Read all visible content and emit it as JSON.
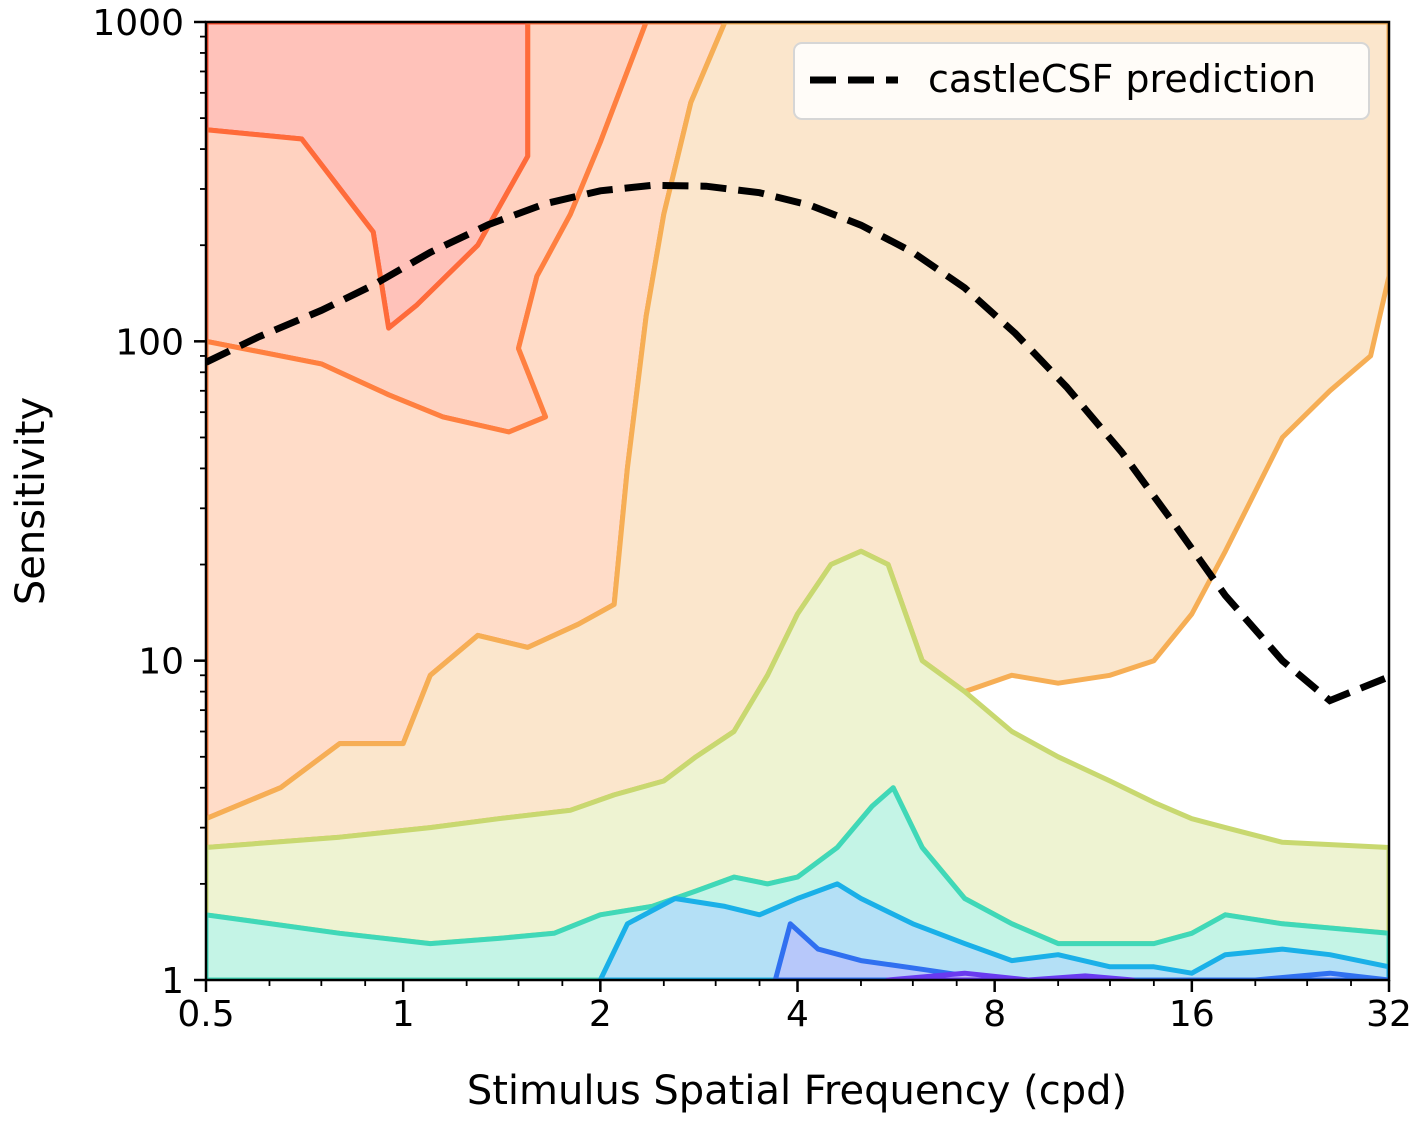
{
  "chart_data": {
    "type": "contour",
    "title": "",
    "xlabel": "Stimulus Spatial Frequency (cpd)",
    "ylabel": "Sensitivity",
    "x_scale": "log2",
    "y_scale": "log10",
    "xlim": [
      0.5,
      32
    ],
    "ylim": [
      1,
      1000
    ],
    "x_ticks": [
      {
        "value": 0.5,
        "label": "0.5"
      },
      {
        "value": 1,
        "label": "1"
      },
      {
        "value": 2,
        "label": "2"
      },
      {
        "value": 4,
        "label": "4"
      },
      {
        "value": 8,
        "label": "8"
      },
      {
        "value": 16,
        "label": "16"
      },
      {
        "value": 32,
        "label": "32"
      }
    ],
    "y_ticks": [
      {
        "value": 1,
        "label": "1"
      },
      {
        "value": 10,
        "label": "10"
      },
      {
        "value": 100,
        "label": "100"
      },
      {
        "value": 1000,
        "label": "1000"
      }
    ],
    "legend": {
      "position": "top-right",
      "entries": [
        {
          "label": "castleCSF prediction",
          "style": "dashed",
          "color": "#000000"
        }
      ]
    },
    "series": [
      {
        "name": "castleCSF prediction",
        "style": "dashed",
        "color": "#000000",
        "points": [
          [
            0.5,
            86
          ],
          [
            0.6,
            103
          ],
          [
            0.75,
            125
          ],
          [
            0.9,
            150
          ],
          [
            1.1,
            190
          ],
          [
            1.35,
            232
          ],
          [
            1.65,
            270
          ],
          [
            2.0,
            296
          ],
          [
            2.4,
            308
          ],
          [
            2.9,
            306
          ],
          [
            3.5,
            292
          ],
          [
            4.2,
            266
          ],
          [
            5.0,
            231
          ],
          [
            6.0,
            190
          ],
          [
            7.2,
            147
          ],
          [
            8.6,
            106
          ],
          [
            10.3,
            72
          ],
          [
            12.5,
            45
          ],
          [
            15,
            27
          ],
          [
            18,
            16
          ],
          [
            22,
            10
          ],
          [
            26,
            7.5
          ],
          [
            32,
            8.9
          ]
        ]
      }
    ],
    "contour_bands": [
      {
        "level": 0,
        "fill": "#ffc2ba",
        "stroke": "#ff4a2a",
        "polygon": [
          [
            0.5,
            1000
          ],
          [
            1.55,
            1000
          ],
          [
            1.55,
            380
          ],
          [
            1.3,
            200
          ],
          [
            1.05,
            130
          ],
          [
            0.95,
            110
          ],
          [
            0.9,
            220
          ],
          [
            0.7,
            430
          ],
          [
            0.5,
            460
          ]
        ]
      },
      {
        "level": 1,
        "fill": "#ffd2c0",
        "stroke": "#ff6b3a",
        "polygon": [
          [
            0.5,
            460
          ],
          [
            0.7,
            430
          ],
          [
            0.9,
            220
          ],
          [
            0.95,
            110
          ],
          [
            1.05,
            130
          ],
          [
            1.3,
            200
          ],
          [
            1.55,
            380
          ],
          [
            1.55,
            1000
          ],
          [
            2.35,
            1000
          ],
          [
            2.0,
            420
          ],
          [
            1.8,
            250
          ],
          [
            1.6,
            160
          ],
          [
            1.5,
            95
          ],
          [
            1.65,
            58
          ],
          [
            1.45,
            52
          ],
          [
            1.15,
            58
          ],
          [
            0.95,
            68
          ],
          [
            0.75,
            85
          ],
          [
            0.5,
            100
          ]
        ]
      },
      {
        "level": 2,
        "fill": "#ffdcc8",
        "stroke": "#ff8040",
        "polygon": [
          [
            0.5,
            100
          ],
          [
            0.75,
            85
          ],
          [
            0.95,
            68
          ],
          [
            1.15,
            58
          ],
          [
            1.45,
            52
          ],
          [
            1.65,
            58
          ],
          [
            1.5,
            95
          ],
          [
            1.6,
            160
          ],
          [
            1.8,
            250
          ],
          [
            2.0,
            420
          ],
          [
            2.35,
            1000
          ],
          [
            3.1,
            1000
          ],
          [
            2.75,
            560
          ],
          [
            2.5,
            250
          ],
          [
            2.35,
            120
          ],
          [
            2.2,
            40
          ],
          [
            2.1,
            15
          ],
          [
            1.85,
            13
          ],
          [
            1.55,
            11
          ],
          [
            1.3,
            12
          ],
          [
            1.1,
            9
          ],
          [
            1.0,
            5.5
          ],
          [
            0.8,
            5.5
          ],
          [
            0.65,
            4
          ],
          [
            0.5,
            3.2
          ]
        ]
      },
      {
        "level": 3,
        "fill": "#fbe6cc",
        "stroke": "#f6ae55",
        "polygon": [
          [
            0.5,
            3.2
          ],
          [
            0.65,
            4
          ],
          [
            0.8,
            5.5
          ],
          [
            1.0,
            5.5
          ],
          [
            1.1,
            9
          ],
          [
            1.3,
            12
          ],
          [
            1.55,
            11
          ],
          [
            1.85,
            13
          ],
          [
            2.1,
            15
          ],
          [
            2.2,
            40
          ],
          [
            2.35,
            120
          ],
          [
            2.5,
            250
          ],
          [
            2.75,
            560
          ],
          [
            3.1,
            1000
          ],
          [
            32,
            1000
          ],
          [
            32,
            160
          ],
          [
            30,
            90
          ],
          [
            26,
            70
          ],
          [
            22,
            50
          ],
          [
            18,
            22
          ],
          [
            16,
            14
          ],
          [
            14,
            10
          ],
          [
            12,
            9
          ],
          [
            10,
            8.5
          ],
          [
            8.5,
            9
          ],
          [
            7.2,
            8
          ],
          [
            6.2,
            10
          ],
          [
            5.5,
            20
          ],
          [
            5.0,
            22
          ],
          [
            4.5,
            20
          ],
          [
            4.0,
            14
          ],
          [
            3.6,
            9
          ],
          [
            3.2,
            6
          ],
          [
            2.8,
            5
          ],
          [
            2.5,
            4.2
          ],
          [
            2.1,
            3.8
          ],
          [
            1.8,
            3.4
          ],
          [
            1.4,
            3.2
          ],
          [
            1.1,
            3
          ],
          [
            0.8,
            2.8
          ],
          [
            0.5,
            2.6
          ]
        ]
      },
      {
        "level": 4,
        "fill": "#eef3d2",
        "stroke": "#c8d870",
        "polygon": [
          [
            0.5,
            2.6
          ],
          [
            0.8,
            2.8
          ],
          [
            1.1,
            3
          ],
          [
            1.4,
            3.2
          ],
          [
            1.8,
            3.4
          ],
          [
            2.1,
            3.8
          ],
          [
            2.5,
            4.2
          ],
          [
            2.8,
            5
          ],
          [
            3.2,
            6
          ],
          [
            3.6,
            9
          ],
          [
            4.0,
            14
          ],
          [
            4.5,
            20
          ],
          [
            5.0,
            22
          ],
          [
            5.5,
            20
          ],
          [
            6.2,
            10
          ],
          [
            7.2,
            8
          ],
          [
            8.5,
            6
          ],
          [
            10,
            5
          ],
          [
            12,
            4.2
          ],
          [
            14,
            3.6
          ],
          [
            16,
            3.2
          ],
          [
            18,
            3
          ],
          [
            22,
            2.7
          ],
          [
            32,
            2.6
          ],
          [
            32,
            1.4
          ],
          [
            22,
            1.5
          ],
          [
            18,
            1.6
          ],
          [
            16,
            1.4
          ],
          [
            14,
            1.3
          ],
          [
            12,
            1.3
          ],
          [
            10,
            1.3
          ],
          [
            8.5,
            1.5
          ],
          [
            7.2,
            1.8
          ],
          [
            6.2,
            2.6
          ],
          [
            5.6,
            4
          ],
          [
            5.2,
            3.5
          ],
          [
            4.6,
            2.6
          ],
          [
            4.0,
            2.1
          ],
          [
            3.6,
            2.0
          ],
          [
            3.2,
            2.1
          ],
          [
            2.8,
            1.9
          ],
          [
            2.4,
            1.7
          ],
          [
            2.0,
            1.6
          ],
          [
            1.7,
            1.4
          ],
          [
            1.4,
            1.35
          ],
          [
            1.1,
            1.3
          ],
          [
            0.8,
            1.4
          ],
          [
            0.5,
            1.6
          ]
        ]
      },
      {
        "level": 5,
        "fill": "#c4f4e6",
        "stroke": "#40d8b8",
        "polygon": [
          [
            0.5,
            1.6
          ],
          [
            0.8,
            1.4
          ],
          [
            1.1,
            1.3
          ],
          [
            1.4,
            1.35
          ],
          [
            1.7,
            1.4
          ],
          [
            2.0,
            1.6
          ],
          [
            2.4,
            1.7
          ],
          [
            2.8,
            1.9
          ],
          [
            3.2,
            2.1
          ],
          [
            3.6,
            2.0
          ],
          [
            4.0,
            2.1
          ],
          [
            4.6,
            2.6
          ],
          [
            5.2,
            3.5
          ],
          [
            5.6,
            4
          ],
          [
            6.2,
            2.6
          ],
          [
            7.2,
            1.8
          ],
          [
            8.5,
            1.5
          ],
          [
            10,
            1.3
          ],
          [
            12,
            1.3
          ],
          [
            14,
            1.3
          ],
          [
            16,
            1.4
          ],
          [
            18,
            1.6
          ],
          [
            22,
            1.5
          ],
          [
            32,
            1.4
          ],
          [
            32,
            1
          ],
          [
            0.5,
            1
          ]
        ]
      },
      {
        "level": 6,
        "fill": "#b4e0f6",
        "stroke": "#1ab0e8",
        "polygon": [
          [
            2.0,
            1
          ],
          [
            2.2,
            1.5
          ],
          [
            2.6,
            1.8
          ],
          [
            3.1,
            1.7
          ],
          [
            3.5,
            1.6
          ],
          [
            4.0,
            1.8
          ],
          [
            4.6,
            2.0
          ],
          [
            5.0,
            1.8
          ],
          [
            6.0,
            1.5
          ],
          [
            7.2,
            1.3
          ],
          [
            8.5,
            1.15
          ],
          [
            10,
            1.2
          ],
          [
            12,
            1.1
          ],
          [
            14,
            1.1
          ],
          [
            16,
            1.05
          ],
          [
            18,
            1.2
          ],
          [
            22,
            1.25
          ],
          [
            26,
            1.2
          ],
          [
            32,
            1.1
          ],
          [
            32,
            1
          ]
        ]
      },
      {
        "level": 7,
        "fill": "#b7c8fa",
        "stroke": "#3070f0",
        "polygon": [
          [
            3.7,
            1
          ],
          [
            3.9,
            1.5
          ],
          [
            4.3,
            1.25
          ],
          [
            5.0,
            1.15
          ],
          [
            6.2,
            1.08
          ],
          [
            7.5,
            1.02
          ],
          [
            9,
            1
          ],
          [
            12,
            1
          ],
          [
            14,
            1
          ],
          [
            16,
            1
          ],
          [
            20,
            1
          ],
          [
            26,
            1.05
          ],
          [
            32,
            1
          ],
          [
            32,
            1
          ]
        ]
      },
      {
        "level": 8,
        "fill": "#c0b8fa",
        "stroke": "#6a3af0",
        "polygon": [
          [
            5.5,
            1
          ],
          [
            7.2,
            1.05
          ],
          [
            9,
            1
          ],
          [
            11,
            1.03
          ],
          [
            13,
            1
          ],
          [
            5.5,
            1
          ]
        ]
      }
    ],
    "grid": false
  }
}
